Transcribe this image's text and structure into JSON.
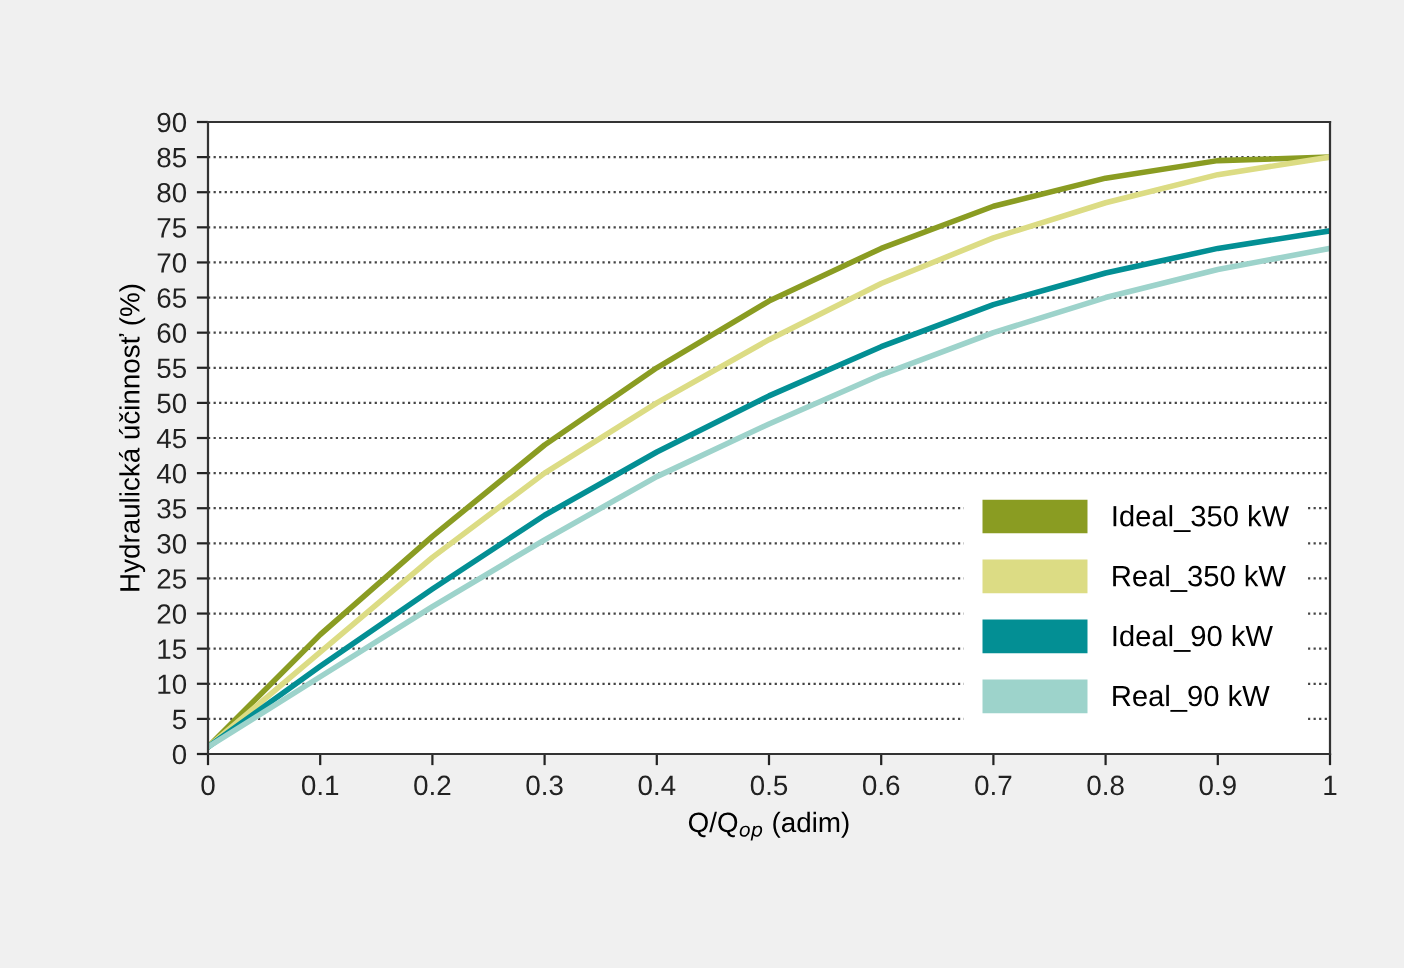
{
  "chart_data": {
    "type": "line",
    "xlabel": "Q/Q$_{op}$ (adim)",
    "ylabel": "Hydraulická účinnosť (%)",
    "x": [
      0,
      0.1,
      0.2,
      0.3,
      0.4,
      0.5,
      0.6,
      0.7,
      0.8,
      0.9,
      1
    ],
    "series": [
      {
        "name": "Ideal_350 kW",
        "color": "#8a9c22",
        "values": [
          1,
          17,
          31,
          44,
          55,
          64.5,
          72,
          78,
          82,
          84.5,
          85
        ]
      },
      {
        "name": "Real_350 kW",
        "color": "#dcdc84",
        "values": [
          1,
          14.5,
          28,
          40,
          50,
          59,
          67,
          73.5,
          78.5,
          82.5,
          85
        ]
      },
      {
        "name": "Ideal_90 kW",
        "color": "#038f94",
        "values": [
          1,
          12.5,
          23.5,
          34,
          43,
          51,
          58,
          64,
          68.5,
          72,
          74.5
        ]
      },
      {
        "name": "Real_90 kW",
        "color": "#9dd3cb",
        "values": [
          1,
          11,
          21,
          30.5,
          39.5,
          47,
          54,
          60,
          65,
          69,
          72
        ]
      }
    ],
    "xlim": [
      0,
      1
    ],
    "xticks": [
      0,
      0.1,
      0.2,
      0.3,
      0.4,
      0.5,
      0.6,
      0.7,
      0.8,
      0.9,
      1
    ],
    "ylim": [
      0,
      90
    ],
    "yticks": [
      0,
      5,
      10,
      15,
      20,
      25,
      30,
      35,
      40,
      45,
      50,
      55,
      60,
      65,
      70,
      75,
      80,
      85,
      90
    ],
    "grid": "y",
    "legend": "bottom right",
    "line_style": "solid",
    "marker": "none"
  }
}
